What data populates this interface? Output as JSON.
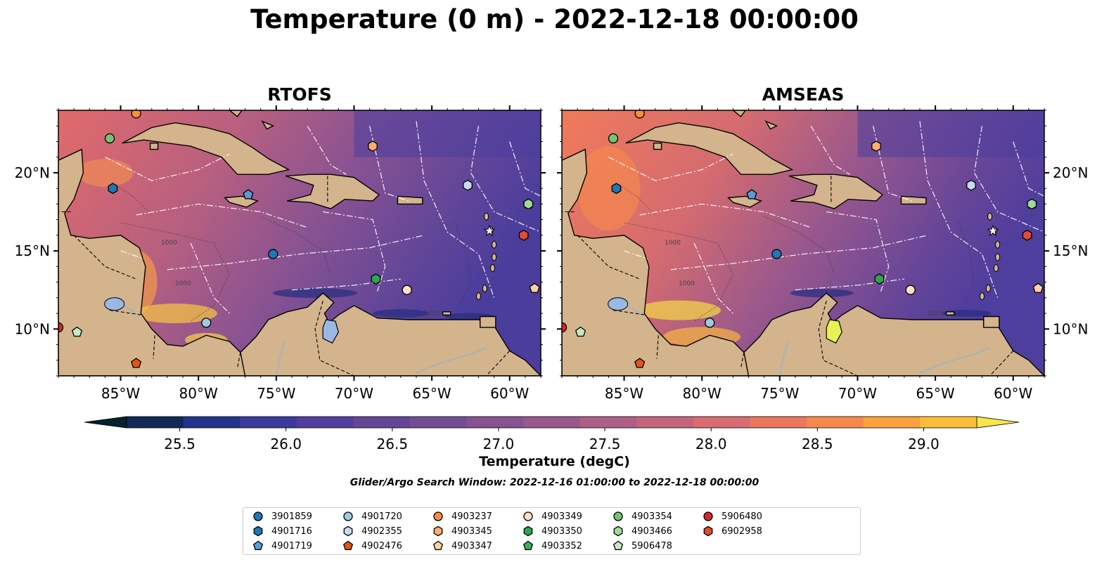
{
  "title": "Temperature (0 m) - 2022-12-18 00:00:00",
  "panels": [
    {
      "name": "RTOFS",
      "variant": "rtofs"
    },
    {
      "name": "AMSEAS",
      "variant": "amseas"
    }
  ],
  "map": {
    "lon_range": [
      -89,
      -58
    ],
    "lat_range": [
      7,
      24
    ],
    "lon_ticks": [
      {
        "value": -85,
        "label": "85°W"
      },
      {
        "value": -80,
        "label": "80°W"
      },
      {
        "value": -75,
        "label": "75°W"
      },
      {
        "value": -70,
        "label": "70°W"
      },
      {
        "value": -65,
        "label": "65°W"
      },
      {
        "value": -60,
        "label": "60°W"
      }
    ],
    "lat_ticks": [
      {
        "value": 10,
        "label": "10°N"
      },
      {
        "value": 15,
        "label": "15°N"
      },
      {
        "value": 20,
        "label": "20°N"
      }
    ],
    "contour_label": "1000"
  },
  "colorbar": {
    "label": "Temperature (degC)",
    "min": 25.25,
    "max": 29.25,
    "ticks": [
      {
        "value": 25.5,
        "label": "25.5"
      },
      {
        "value": 26.0,
        "label": "26.0"
      },
      {
        "value": 26.5,
        "label": "26.5"
      },
      {
        "value": 27.0,
        "label": "27.0"
      },
      {
        "value": 27.5,
        "label": "27.5"
      },
      {
        "value": 28.0,
        "label": "28.0"
      },
      {
        "value": 28.5,
        "label": "28.5"
      },
      {
        "value": 29.0,
        "label": "29.0"
      }
    ],
    "colors": [
      "#06212e",
      "#112a58",
      "#22338d",
      "#3c3a9c",
      "#513e9e",
      "#644597",
      "#744c93",
      "#865191",
      "#99588c",
      "#af5f86",
      "#c3667d",
      "#d96c72",
      "#ec7660",
      "#f8894d",
      "#fba23e",
      "#fcbd3b",
      "#f7e64a"
    ],
    "extend": "both"
  },
  "search_window": "Glider/Argo Search Window: 2022-12-16 01:00:00 to 2022-12-18 00:00:00",
  "floats": [
    {
      "id": "3901859",
      "marker": "circle",
      "color": "#1f77b4",
      "lon": -75.2,
      "lat": 14.8
    },
    {
      "id": "4901716",
      "marker": "hexagon",
      "color": "#1f77b4",
      "lon": -85.5,
      "lat": 19.0
    },
    {
      "id": "4901719",
      "marker": "pentagon",
      "color": "#5a9bd5",
      "lon": -76.8,
      "lat": 18.6
    },
    {
      "id": "4901720",
      "marker": "circle",
      "color": "#9ecae1",
      "lon": -79.5,
      "lat": 10.4
    },
    {
      "id": "4902355",
      "marker": "hexagon",
      "color": "#c6dbef",
      "lon": -62.7,
      "lat": 19.2
    },
    {
      "id": "4902476",
      "marker": "pentagon",
      "color": "#e6550d",
      "lon": -84.0,
      "lat": 7.8
    },
    {
      "id": "4903237",
      "marker": "circle",
      "color": "#fd8d3c",
      "lon": -84.0,
      "lat": 23.8
    },
    {
      "id": "4903345",
      "marker": "hexagon",
      "color": "#fdae6b",
      "lon": -68.8,
      "lat": 21.7
    },
    {
      "id": "4903347",
      "marker": "pentagon",
      "color": "#fdd0a2",
      "lon": -58.4,
      "lat": 12.6
    },
    {
      "id": "4903349",
      "marker": "circle",
      "color": "#fde0c5",
      "lon": -66.6,
      "lat": 12.5
    },
    {
      "id": "4903350",
      "marker": "hexagon",
      "color": "#31a354",
      "lon": -68.6,
      "lat": 13.2
    },
    {
      "id": "4903352",
      "marker": "pentagon",
      "color": "#41ab5d",
      "lon": -58.8,
      "lat": 18.0
    },
    {
      "id": "4903354",
      "marker": "circle",
      "color": "#74c476",
      "lon": -85.7,
      "lat": 22.2
    },
    {
      "id": "4903466",
      "marker": "hexagon",
      "color": "#a1d99b",
      "lon": -58.8,
      "lat": 18.0
    },
    {
      "id": "5906478",
      "marker": "pentagon",
      "color": "#c7e9c0",
      "lon": -87.8,
      "lat": 9.8
    },
    {
      "id": "5906480",
      "marker": "circle",
      "color": "#d62728",
      "lon": -89.0,
      "lat": 10.1
    },
    {
      "id": "6902958",
      "marker": "hexagon",
      "color": "#e34a33",
      "lon": -59.1,
      "lat": 16.0
    }
  ]
}
